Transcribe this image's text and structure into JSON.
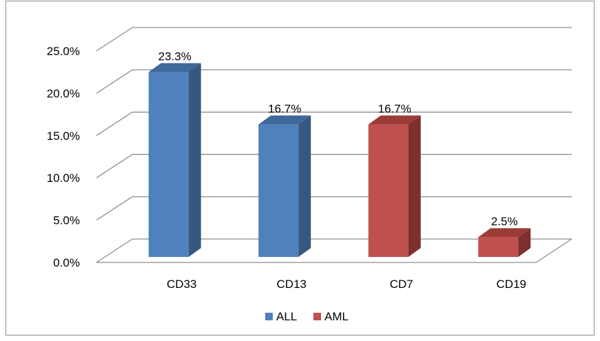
{
  "chart_data": {
    "type": "bar",
    "categories": [
      "CD33",
      "CD13",
      "CD7",
      "CD19"
    ],
    "series": [
      {
        "name": "ALL",
        "values": [
          23.3,
          16.7,
          null,
          null
        ],
        "color": "#4F81BD",
        "side_color": "#36587F",
        "top_color": "#3F689B"
      },
      {
        "name": "AML",
        "values": [
          null,
          null,
          16.7,
          2.5
        ],
        "color": "#C0504D",
        "side_color": "#7F2F2D",
        "top_color": "#9C3B38"
      }
    ],
    "data_labels": [
      "23.3%",
      "16.7%",
      "16.7%",
      "2.5%"
    ],
    "y_ticks": [
      "0.0%",
      "5.0%",
      "10.0%",
      "15.0%",
      "20.0%",
      "25.0%"
    ],
    "ylim": [
      0,
      25
    ],
    "grid": true,
    "three_d": true,
    "legend_position": "bottom",
    "title": "",
    "xlabel": "",
    "ylabel": ""
  }
}
